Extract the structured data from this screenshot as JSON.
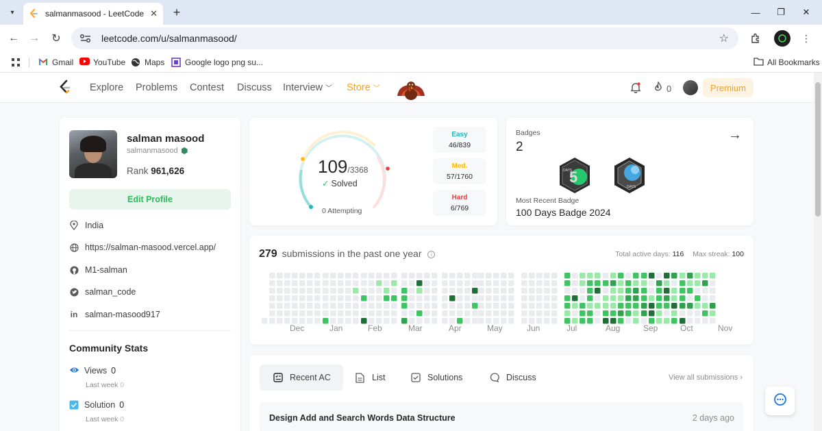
{
  "browser": {
    "tab_title": "salmanmasood - LeetCode Prof",
    "url": "leetcode.com/u/salmanmasood/",
    "bookmarks": [
      "Gmail",
      "YouTube",
      "Maps",
      "Google logo png su...",
      "All Bookmarks"
    ]
  },
  "nav": {
    "links": [
      "Explore",
      "Problems",
      "Contest",
      "Discuss",
      "Interview",
      "Store"
    ],
    "streak_count": "0",
    "premium_label": "Premium"
  },
  "profile": {
    "name": "salman masood",
    "handle": "salmanmasood",
    "rank_label": "Rank",
    "rank_value": "961,626",
    "edit_label": "Edit Profile",
    "location": "India",
    "website": "https://salman-masood.vercel.app/",
    "github": "M1-salman",
    "twitter": "salman_code",
    "linkedin": "salman-masood917"
  },
  "community": {
    "title": "Community Stats",
    "views_label": "Views",
    "views_value": "0",
    "views_last_week": "Last week",
    "views_delta": "0",
    "solution_label": "Solution",
    "solution_value": "0",
    "solution_last_week": "Last week",
    "solution_delta": "0"
  },
  "solved": {
    "count": "109",
    "total": "/3368",
    "label": "Solved",
    "attempting": "0 Attempting",
    "easy_label": "Easy",
    "easy_value": "46/839",
    "medium_label": "Med.",
    "medium_value": "57/1760",
    "hard_label": "Hard",
    "hard_value": "6/769",
    "colors": {
      "easy": "#1cbaba",
      "medium": "#ffb800",
      "hard": "#f63737"
    }
  },
  "badges": {
    "label": "Badges",
    "count": "2",
    "recent_label": "Most Recent Badge",
    "recent_name": "100 Days Badge 2024",
    "badge1_text": "DAYS",
    "badge2_text": "DAYS"
  },
  "submissions": {
    "count": "279",
    "label": "submissions in the past one year",
    "active_label": "Total active days:",
    "active_value": "116",
    "streak_label": "Max streak:",
    "streak_value": "100",
    "months": [
      "Dec",
      "Jan",
      "Feb",
      "Mar",
      "Apr",
      "May",
      "Jun",
      "Jul",
      "Aug",
      "Sep",
      "Oct",
      "Nov"
    ]
  },
  "recent": {
    "tabs": [
      "Recent AC",
      "List",
      "Solutions",
      "Discuss"
    ],
    "view_all": "View all submissions",
    "items": [
      {
        "title": "Design Add and Search Words Data Structure",
        "time": "2 days ago"
      }
    ]
  }
}
